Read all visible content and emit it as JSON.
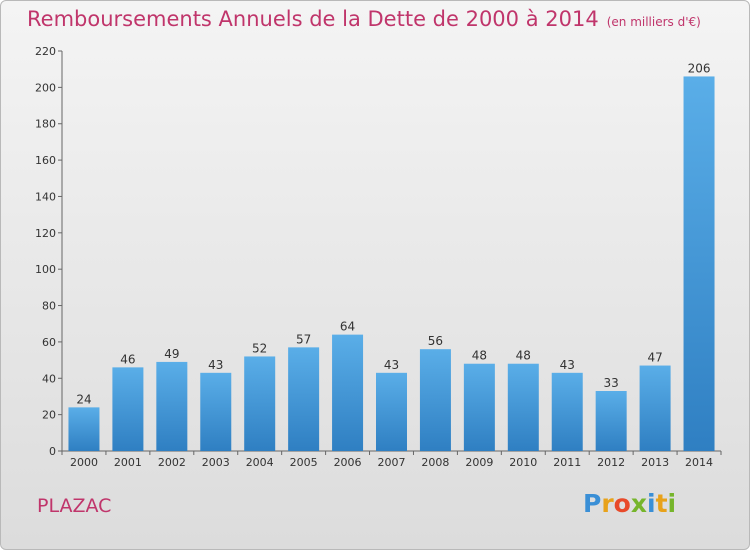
{
  "title": "Remboursements Annuels de la Dette de 2000 à 2014",
  "subtitle": "(en milliers d'€)",
  "town": "PLAZAC",
  "logo_text": "Proxiti",
  "colors": {
    "title": "#c0356b",
    "bar_top": "#5aaee8",
    "bar_bottom": "#2f7fc2"
  },
  "chart_data": {
    "type": "bar",
    "title": "Remboursements Annuels de la Dette de 2000 à 2014",
    "subtitle": "(en milliers d'€)",
    "categories": [
      "2000",
      "2001",
      "2002",
      "2003",
      "2004",
      "2005",
      "2006",
      "2007",
      "2008",
      "2009",
      "2010",
      "2011",
      "2012",
      "2013",
      "2014"
    ],
    "values": [
      24,
      46,
      49,
      43,
      52,
      57,
      64,
      43,
      56,
      48,
      48,
      43,
      33,
      47,
      206
    ],
    "ylim": [
      0,
      220
    ],
    "yticks": [
      0,
      20,
      40,
      60,
      80,
      100,
      120,
      140,
      160,
      180,
      200,
      220
    ],
    "grid": false
  }
}
